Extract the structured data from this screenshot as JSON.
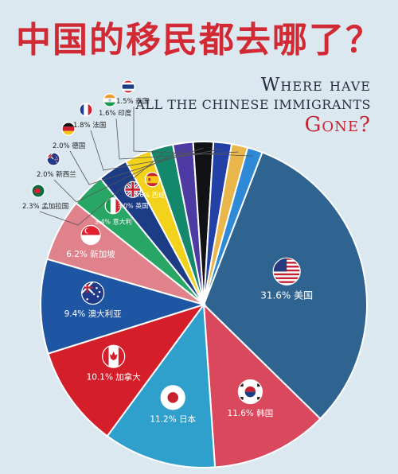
{
  "header": {
    "title": "中国的移民都去哪了？",
    "subtitle_line1": "Where have",
    "subtitle_line2": "ALL THE CHINESE IMMIGRANTS",
    "subtitle_line3": "Gone?"
  },
  "chart_data": {
    "type": "pie",
    "title": "中国的移民都去哪了？",
    "slices": [
      {
        "label": "美国",
        "value": 31.6,
        "text": "31.6% 美国",
        "color": "#2f6390",
        "flag": "usa-flag"
      },
      {
        "label": "韩国",
        "value": 11.6,
        "text": "11.6% 韩国",
        "color": "#d9485d",
        "flag": "korea-flag"
      },
      {
        "label": "日本",
        "value": 11.2,
        "text": "11.2% 日本",
        "color": "#2f9fcb",
        "flag": "japan-flag"
      },
      {
        "label": "加拿大",
        "value": 10.1,
        "text": "10.1% 加拿大",
        "color": "#d41f2b",
        "flag": "canada-flag"
      },
      {
        "label": "澳大利亚",
        "value": 9.4,
        "text": "9.4% 澳大利亚",
        "color": "#1f56a4",
        "flag": "australia-flag"
      },
      {
        "label": "新加坡",
        "value": 6.2,
        "text": "6.2% 新加坡",
        "color": "#e0828b",
        "flag": "singapore-flag"
      },
      {
        "label": "意大利",
        "value": 3.4,
        "text": "3.4% 意大利",
        "color": "#28a665",
        "flag": "italy-flag"
      },
      {
        "label": "英国",
        "value": 3.0,
        "text": "3.0% 英国",
        "color": "#1d3c86",
        "flag": "uk-flag"
      },
      {
        "label": "西班牙",
        "value": 2.6,
        "text": "2.6% 西班牙",
        "color": "#f2d21a",
        "flag": "spain-flag"
      },
      {
        "label": "孟加拉国",
        "value": 2.3,
        "text": "2.3% 孟加拉国",
        "color": "#14886a",
        "flag": "bangladesh-flag"
      },
      {
        "label": "新西兰",
        "value": 2.0,
        "text": "2.0% 新西兰",
        "color": "#4d3ba3",
        "flag": "new-zealand-flag"
      },
      {
        "label": "德国",
        "value": 2.0,
        "text": "2.0% 德国",
        "color": "#101216",
        "flag": "germany-flag"
      },
      {
        "label": "法国",
        "value": 1.8,
        "text": "1.8% 法国",
        "color": "#2240a6",
        "flag": "france-flag"
      },
      {
        "label": "印度",
        "value": 1.6,
        "text": "1.6% 印度",
        "color": "#e8b64a",
        "flag": "india-flag"
      },
      {
        "label": "泰国",
        "value": 1.5,
        "text": "1.5% 泰国",
        "color": "#2e89d6",
        "flag": "thailand-flag"
      }
    ]
  }
}
